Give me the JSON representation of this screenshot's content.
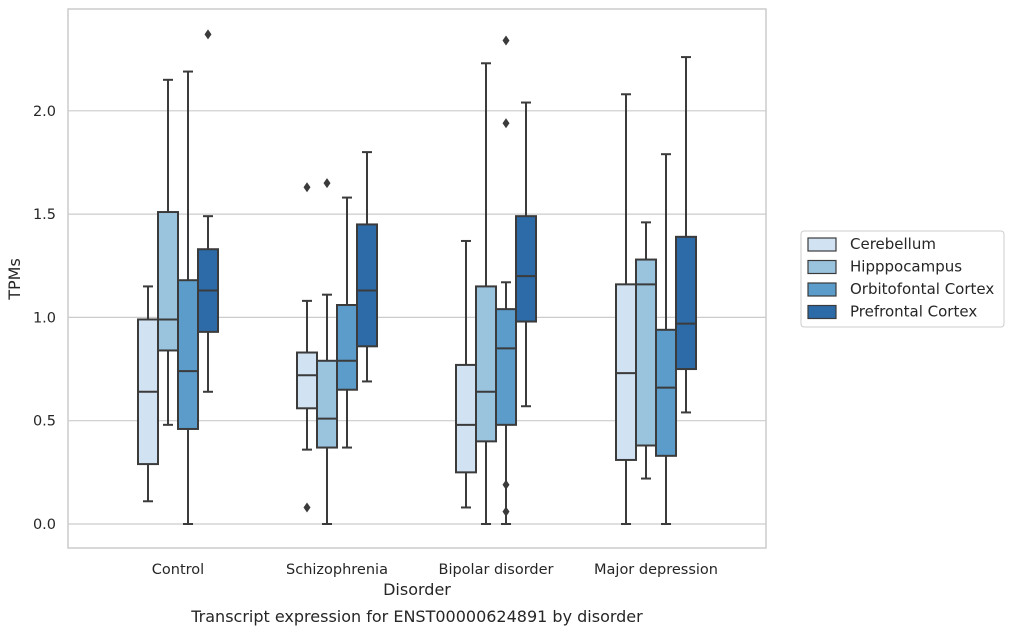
{
  "chart_data": {
    "type": "box",
    "caption": "Transcript expression for ENST00000624891 by disorder",
    "xlabel": "Disorder",
    "ylabel": "TPMs",
    "ylim": [
      -0.11,
      2.49
    ],
    "yticks": [
      "0.0",
      "0.5",
      "1.0",
      "1.5",
      "2.0"
    ],
    "ytick_values": [
      0,
      0.5,
      1.0,
      1.5,
      2.0
    ],
    "grid": "horizontal",
    "legend_position": "outside-right",
    "categories": [
      "Control",
      "Schizophrenia",
      "Bipolar disorder",
      "Major depression"
    ],
    "series": [
      {
        "name": "Cerebellum",
        "color": "#d1e2f2",
        "boxes": [
          {
            "whislo": 0.11,
            "q1": 0.29,
            "med": 0.64,
            "q3": 0.99,
            "whishi": 1.15,
            "fliers": []
          },
          {
            "whislo": 0.36,
            "q1": 0.56,
            "med": 0.72,
            "q3": 0.83,
            "whishi": 1.08,
            "fliers": [
              0.08,
              1.63
            ]
          },
          {
            "whislo": 0.08,
            "q1": 0.25,
            "med": 0.48,
            "q3": 0.77,
            "whishi": 1.37,
            "fliers": []
          },
          {
            "whislo": 0.0,
            "q1": 0.31,
            "med": 0.73,
            "q3": 1.16,
            "whishi": 2.08,
            "fliers": []
          }
        ]
      },
      {
        "name": "Hipppocampus",
        "color": "#9ac3de",
        "boxes": [
          {
            "whislo": 0.48,
            "q1": 0.84,
            "med": 0.99,
            "q3": 1.51,
            "whishi": 2.15,
            "fliers": []
          },
          {
            "whislo": 0.0,
            "q1": 0.37,
            "med": 0.51,
            "q3": 0.79,
            "whishi": 1.11,
            "fliers": [
              1.65
            ]
          },
          {
            "whislo": 0.0,
            "q1": 0.4,
            "med": 0.64,
            "q3": 1.15,
            "whishi": 2.23,
            "fliers": []
          },
          {
            "whislo": 0.22,
            "q1": 0.38,
            "med": 1.16,
            "q3": 1.28,
            "whishi": 1.46,
            "fliers": []
          }
        ]
      },
      {
        "name": "Orbitofontal Cortex",
        "color": "#5b9ccb",
        "boxes": [
          {
            "whislo": 0.0,
            "q1": 0.46,
            "med": 0.74,
            "q3": 1.18,
            "whishi": 2.19,
            "fliers": []
          },
          {
            "whislo": 0.37,
            "q1": 0.65,
            "med": 0.79,
            "q3": 1.06,
            "whishi": 1.58,
            "fliers": []
          },
          {
            "whislo": 0.0,
            "q1": 0.48,
            "med": 0.85,
            "q3": 1.04,
            "whishi": 1.17,
            "fliers": [
              0.06,
              0.19,
              1.94,
              2.34
            ]
          },
          {
            "whislo": 0.0,
            "q1": 0.33,
            "med": 0.66,
            "q3": 0.94,
            "whishi": 1.79,
            "fliers": []
          }
        ]
      },
      {
        "name": "Prefrontal Cortex",
        "color": "#2c6aa8",
        "boxes": [
          {
            "whislo": 0.64,
            "q1": 0.93,
            "med": 1.13,
            "q3": 1.33,
            "whishi": 1.49,
            "fliers": [
              2.37
            ]
          },
          {
            "whislo": 0.69,
            "q1": 0.86,
            "med": 1.13,
            "q3": 1.45,
            "whishi": 1.8,
            "fliers": []
          },
          {
            "whislo": 0.57,
            "q1": 0.98,
            "med": 1.2,
            "q3": 1.49,
            "whishi": 2.04,
            "fliers": []
          },
          {
            "whislo": 0.54,
            "q1": 0.75,
            "med": 0.97,
            "q3": 1.39,
            "whishi": 2.26,
            "fliers": []
          }
        ]
      }
    ]
  }
}
